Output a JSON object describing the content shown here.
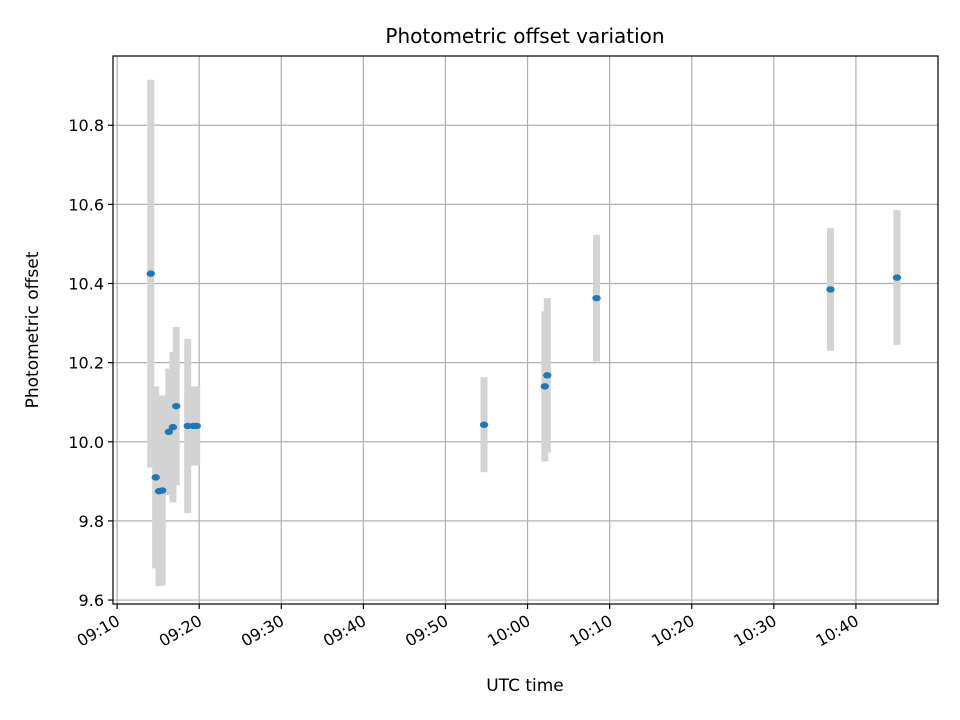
{
  "chart_data": {
    "type": "scatter",
    "title": "Photometric offset variation",
    "xlabel": "UTC time",
    "ylabel": "Photometric offset",
    "x_unit": "minutes after 09:00 UTC",
    "xlim": [
      9.5,
      110.0
    ],
    "ylim": [
      9.59,
      10.975
    ],
    "grid": true,
    "x_ticks": [
      {
        "value": 10,
        "label": "09:10"
      },
      {
        "value": 20,
        "label": "09:20"
      },
      {
        "value": 30,
        "label": "09:30"
      },
      {
        "value": 40,
        "label": "09:40"
      },
      {
        "value": 50,
        "label": "09:50"
      },
      {
        "value": 60,
        "label": "10:00"
      },
      {
        "value": 70,
        "label": "10:10"
      },
      {
        "value": 80,
        "label": "10:20"
      },
      {
        "value": 90,
        "label": "10:30"
      },
      {
        "value": 100,
        "label": "10:40"
      }
    ],
    "y_ticks": [
      {
        "value": 9.6,
        "label": "9.6"
      },
      {
        "value": 9.8,
        "label": "9.8"
      },
      {
        "value": 10.0,
        "label": "10.0"
      },
      {
        "value": 10.2,
        "label": "10.2"
      },
      {
        "value": 10.4,
        "label": "10.4"
      },
      {
        "value": 10.6,
        "label": "10.6"
      },
      {
        "value": 10.8,
        "label": "10.8"
      }
    ],
    "colors": {
      "point": "#1f77b4",
      "errorbar": "#d3d3d3",
      "grid": "#b0b0b0"
    },
    "points": [
      {
        "x": 14.1,
        "y": 10.425,
        "err": 0.49
      },
      {
        "x": 14.7,
        "y": 9.91,
        "err": 0.23
      },
      {
        "x": 15.1,
        "y": 9.875,
        "err": 0.24
      },
      {
        "x": 15.5,
        "y": 9.877,
        "err": 0.24
      },
      {
        "x": 16.3,
        "y": 10.025,
        "err": 0.16
      },
      {
        "x": 16.8,
        "y": 10.037,
        "err": 0.19
      },
      {
        "x": 17.2,
        "y": 10.09,
        "err": 0.2
      },
      {
        "x": 18.6,
        "y": 10.04,
        "err": 0.22
      },
      {
        "x": 19.3,
        "y": 10.04,
        "err": 0.1
      },
      {
        "x": 19.7,
        "y": 10.04,
        "err": 0.1
      },
      {
        "x": 54.7,
        "y": 10.043,
        "err": 0.12
      },
      {
        "x": 62.1,
        "y": 10.14,
        "err": 0.19
      },
      {
        "x": 62.4,
        "y": 10.168,
        "err": 0.195
      },
      {
        "x": 68.4,
        "y": 10.363,
        "err": 0.16
      },
      {
        "x": 96.9,
        "y": 10.385,
        "err": 0.155
      },
      {
        "x": 105.0,
        "y": 10.415,
        "err": 0.17
      }
    ]
  }
}
